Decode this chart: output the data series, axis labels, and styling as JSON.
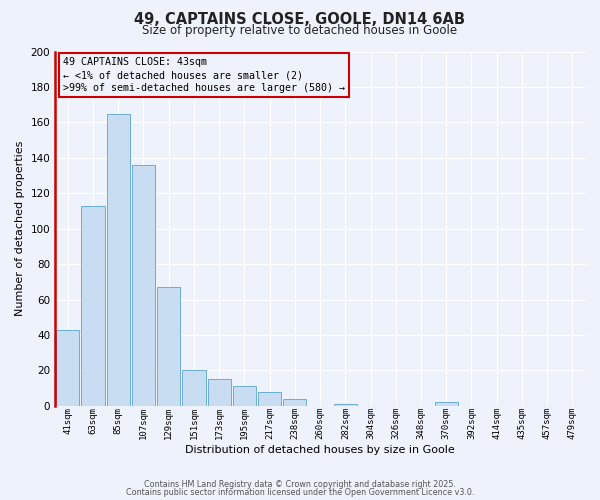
{
  "title": "49, CAPTAINS CLOSE, GOOLE, DN14 6AB",
  "subtitle": "Size of property relative to detached houses in Goole",
  "xlabel": "Distribution of detached houses by size in Goole",
  "ylabel": "Number of detached properties",
  "bar_color": "#c8ddf2",
  "bar_edge_color": "#6aaed6",
  "background_color": "#eef2fb",
  "grid_color": "#ffffff",
  "categories": [
    "41sqm",
    "63sqm",
    "85sqm",
    "107sqm",
    "129sqm",
    "151sqm",
    "173sqm",
    "195sqm",
    "217sqm",
    "238sqm",
    "260sqm",
    "282sqm",
    "304sqm",
    "326sqm",
    "348sqm",
    "370sqm",
    "392sqm",
    "414sqm",
    "435sqm",
    "457sqm",
    "479sqm"
  ],
  "values": [
    43,
    113,
    165,
    136,
    67,
    20,
    15,
    11,
    8,
    4,
    0,
    1,
    0,
    0,
    0,
    2,
    0,
    0,
    0,
    0,
    0
  ],
  "ylim": [
    0,
    200
  ],
  "yticks": [
    0,
    20,
    40,
    60,
    80,
    100,
    120,
    140,
    160,
    180,
    200
  ],
  "annotation_line1": "49 CAPTAINS CLOSE: 43sqm",
  "annotation_line2": "← <1% of detached houses are smaller (2)",
  "annotation_line3": ">99% of semi-detached houses are larger (580) →",
  "annotation_box_edge_color": "#cc0000",
  "footer_line1": "Contains HM Land Registry data © Crown copyright and database right 2025.",
  "footer_line2": "Contains public sector information licensed under the Open Government Licence v3.0."
}
